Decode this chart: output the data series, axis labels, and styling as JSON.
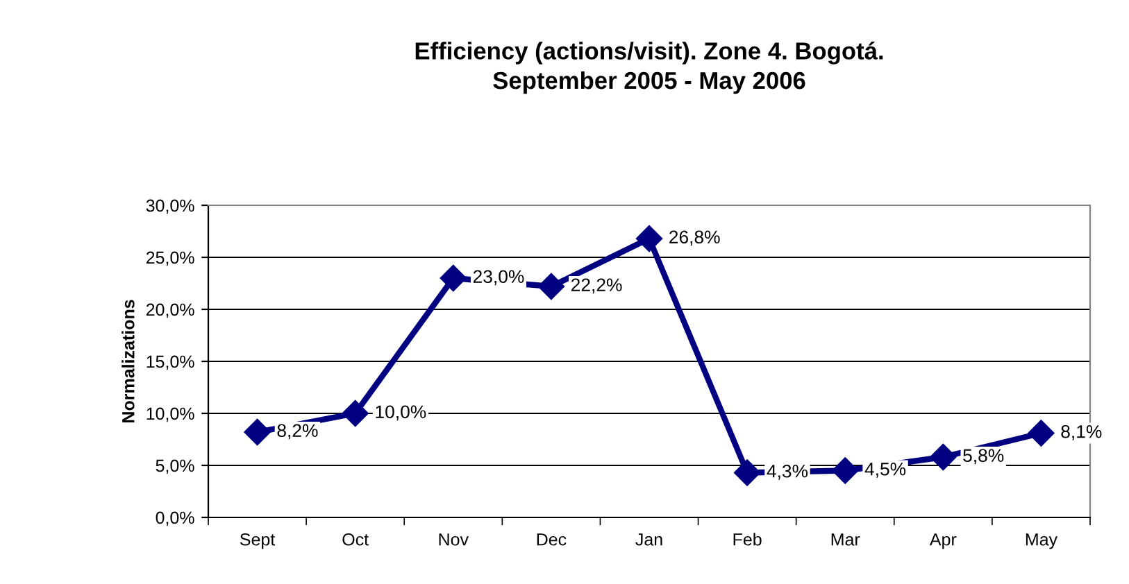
{
  "chart_data": {
    "type": "line",
    "title": "Efficiency (actions/visit). Zone 4. Bogotá.\nSeptember 2005 - May 2006",
    "ylabel": "Normalizations",
    "categories": [
      "Sept",
      "Oct",
      "Nov",
      "Dec",
      "Jan",
      "Feb",
      "Mar",
      "Apr",
      "May"
    ],
    "series": [
      {
        "color": "#000080",
        "values": [
          8.2,
          10.0,
          23.0,
          22.2,
          26.8,
          4.3,
          4.5,
          5.8,
          8.1
        ]
      }
    ],
    "value_labels": [
      "8,2%",
      "10,0%",
      "23,0%",
      "22,2%",
      "26,8%",
      "4,3%",
      "4,5%",
      "5,8%",
      "8,1%"
    ],
    "ylim": [
      0,
      30
    ],
    "yticks": [
      {
        "value": 0,
        "label": "0,0%"
      },
      {
        "value": 5,
        "label": "5,0%"
      },
      {
        "value": 10,
        "label": "10,0%"
      },
      {
        "value": 15,
        "label": "15,0%"
      },
      {
        "value": 20,
        "label": "20,0%"
      },
      {
        "value": 25,
        "label": "25,0%"
      },
      {
        "value": 30,
        "label": "30,0%"
      }
    ],
    "grid": "y",
    "marker": "diamond",
    "line_style": "solid",
    "legend": false
  }
}
